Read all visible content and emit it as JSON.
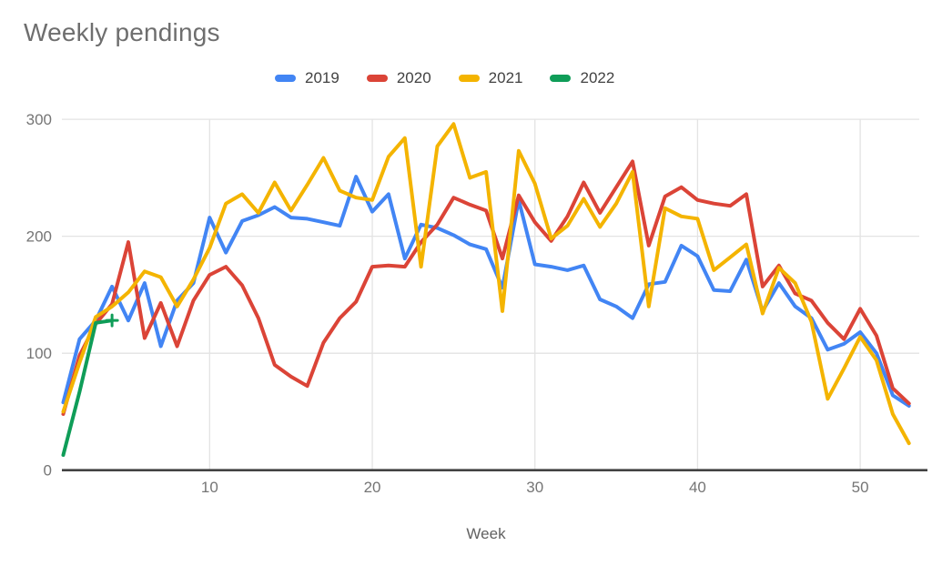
{
  "header": {
    "title": "Weekly pendings"
  },
  "legend": {
    "items": [
      {
        "label": "2019",
        "color": "#4285F4"
      },
      {
        "label": "2020",
        "color": "#DB4437"
      },
      {
        "label": "2021",
        "color": "#F4B400"
      },
      {
        "label": "2022",
        "color": "#0F9D58"
      }
    ]
  },
  "chart_data": {
    "type": "line",
    "title": "Weekly pendings",
    "xlabel": "Week",
    "ylabel": "",
    "xlim": [
      1,
      53
    ],
    "ylim": [
      0,
      300
    ],
    "x_ticks": [
      10,
      20,
      30,
      40,
      50
    ],
    "y_ticks": [
      0,
      100,
      200,
      300
    ],
    "grid": true,
    "legend_position": "top",
    "x": "week numbers 1-53",
    "series": [
      {
        "name": "2019",
        "color": "#4285F4",
        "values": [
          58,
          112,
          128,
          157,
          128,
          160,
          106,
          145,
          160,
          216,
          186,
          213,
          218,
          225,
          216,
          215,
          212,
          209,
          251,
          221,
          236,
          181,
          210,
          207,
          201,
          193,
          189,
          156,
          231,
          176,
          174,
          171,
          175,
          146,
          140,
          130,
          159,
          161,
          192,
          183,
          154,
          153,
          180,
          136,
          160,
          140,
          130,
          103,
          108,
          118,
          100,
          64,
          55
        ]
      },
      {
        "name": "2020",
        "color": "#DB4437",
        "values": [
          48,
          98,
          125,
          142,
          195,
          113,
          143,
          106,
          145,
          167,
          174,
          158,
          130,
          90,
          80,
          72,
          109,
          130,
          144,
          174,
          175,
          174,
          195,
          210,
          233,
          227,
          222,
          181,
          235,
          212,
          196,
          217,
          246,
          220,
          242,
          264,
          192,
          234,
          242,
          231,
          228,
          226,
          236,
          157,
          175,
          151,
          145,
          126,
          112,
          138,
          115,
          70,
          57
        ]
      },
      {
        "name": "2021",
        "color": "#F4B400",
        "values": [
          50,
          92,
          131,
          140,
          152,
          170,
          165,
          140,
          163,
          190,
          228,
          236,
          220,
          246,
          222,
          244,
          267,
          239,
          233,
          231,
          268,
          284,
          174,
          277,
          296,
          250,
          255,
          136,
          273,
          245,
          198,
          209,
          232,
          208,
          228,
          255,
          140,
          224,
          217,
          215,
          171,
          182,
          193,
          134,
          173,
          160,
          127,
          61,
          87,
          114,
          94,
          48,
          23
        ]
      },
      {
        "name": "2022",
        "color": "#0F9D58",
        "end_marker": "plus",
        "values": [
          13,
          67,
          126,
          128
        ]
      }
    ]
  }
}
